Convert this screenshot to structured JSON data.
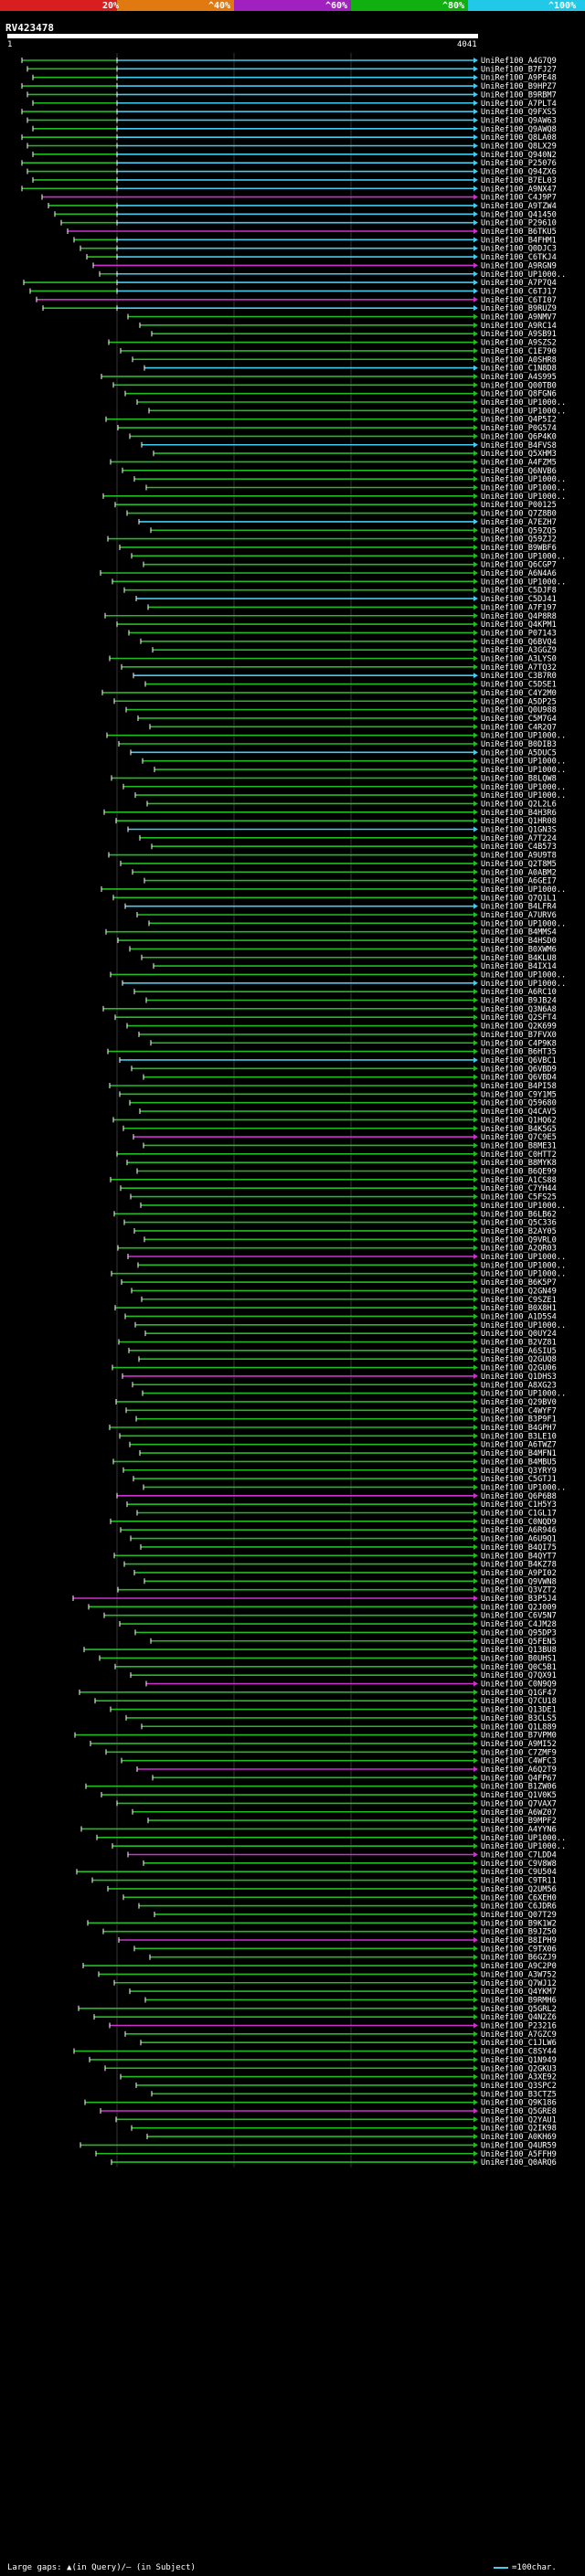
{
  "legend": {
    "stops": [
      {
        "label": "20%",
        "color": "#d81e1e"
      },
      {
        "label": "^40%",
        "color": "#e07a10"
      },
      {
        "label": "^60%",
        "color": "#a020c0"
      },
      {
        "label": "^80%",
        "color": "#10b010"
      },
      {
        "label": "^100%",
        "color": "#22c8e8"
      }
    ]
  },
  "query": {
    "name": "RV423478",
    "start": "1",
    "end": "4041"
  },
  "colors": {
    "cyan": "#44ccee",
    "green": "#22bb22",
    "magenta": "#cc33cc",
    "white": "#ffffff",
    "guide": "#333333"
  },
  "hits": [
    "UniRef100_A4G7Q9",
    "UniRef100_B7FJ27",
    "UniRef100_A9PE48",
    "UniRef100_B9HPZ7",
    "UniRef100_B9RBM7",
    "UniRef100_A7PLT4",
    "UniRef100_Q9FXS5",
    "UniRef100_Q9AW63",
    "UniRef100_Q9AWQ8",
    "UniRef100_Q8LA08",
    "UniRef100_Q8LX29",
    "UniRef100_Q940N2",
    "UniRef100_P25076",
    "UniRef100_Q94ZX6",
    "UniRef100_B7EL03",
    "UniRef100_A9NX47",
    "UniRef100_C4J9P7",
    "UniRef100_A9TZW4",
    "UniRef100_Q41450",
    "UniRef100_P29610",
    "UniRef100_B6TKU5",
    "UniRef100_B4FHM1",
    "UniRef100_Q0DJC3",
    "UniRef100_C6TKJ4",
    "UniRef100_A9RGN9",
    "UniRef100_UP1000..",
    "UniRef100_A7P7Q4",
    "UniRef100_C6TJ17",
    "UniRef100_C6TI07",
    "UniRef100_B9RUZ9",
    "UniRef100_A9NMV7",
    "UniRef100_A9RC14",
    "UniRef100_A9SB91",
    "UniRef100_A9SZS2",
    "UniRef100_C1E790",
    "UniRef100_A0SHR8",
    "UniRef100_C1N8D8",
    "UniRef100_A4S995",
    "UniRef100_Q00TB0",
    "UniRef100_Q8FGN6",
    "UniRef100_UP1000..",
    "UniRef100_UP1000..",
    "UniRef100_Q4P5I2",
    "UniRef100_P0G574",
    "UniRef100_Q6P4K0",
    "UniRef100_B4FVS8",
    "UniRef100_Q5XHM3",
    "UniRef100_A4FZM5",
    "UniRef100_Q6NVB6",
    "UniRef100_UP1000..",
    "UniRef100_UP1000..",
    "UniRef100_UP1000..",
    "UniRef100_P00125",
    "UniRef100_Q7Z8B0",
    "UniRef100_A7EZH7",
    "UniRef100_Q59ZQ5",
    "UniRef100_Q59ZJ2",
    "UniRef100_B9WBF6",
    "UniRef100_UP1000..",
    "UniRef100_Q6CGP7",
    "UniRef100_A6N4A6",
    "UniRef100_UP1000..",
    "UniRef100_C5DJF8",
    "UniRef100_C5DJ41",
    "UniRef100_A7F197",
    "UniRef100_Q4P8R8",
    "UniRef100_Q4KPM1",
    "UniRef100_P07143",
    "UniRef100_Q6BVQ4",
    "UniRef100_A3GGZ9",
    "UniRef100_A3LYS0",
    "UniRef100_A7TQ32",
    "UniRef100_C3B7R0",
    "UniRef100_C5DSE1",
    "UniRef100_C4Y2M0",
    "UniRef100_A5DP25",
    "UniRef100_Q0U988",
    "UniRef100_C5M7G4",
    "UniRef100_C4R2Q7",
    "UniRef100_UP1000..",
    "UniRef100_B0DIB3",
    "UniRef100_A5DUC5",
    "UniRef100_UP1000..",
    "UniRef100_UP1000..",
    "UniRef100_B8LQW8",
    "UniRef100_UP1000..",
    "UniRef100_UP1000..",
    "UniRef100_Q2L2L6",
    "UniRef100_B4H3R6",
    "UniRef100_Q1HR08",
    "UniRef100_Q1GN3S",
    "UniRef100_A7T224",
    "UniRef100_C4B573",
    "UniRef100_A9U9T8",
    "UniRef100_Q2T8M5",
    "UniRef100_A0ABM2",
    "UniRef100_A6GEI7",
    "UniRef100_UP1000..",
    "UniRef100_Q7Q1L1",
    "UniRef100_B4LFR4",
    "UniRef100_A7URV6",
    "UniRef100_UP1000..",
    "UniRef100_B4MMS4",
    "UniRef100_B4HSD0",
    "UniRef100_B0XWM6",
    "UniRef100_B4KLU8",
    "UniRef100_B4IX14",
    "UniRef100_UP1000..",
    "UniRef100_UP1000..",
    "UniRef100_A6RC10",
    "UniRef100_B9JB24",
    "UniRef100_Q3N6A8",
    "UniRef100_Q2SFT4",
    "UniRef100_Q2K699",
    "UniRef100_B7FVX0",
    "UniRef100_C4P9K8",
    "UniRef100_B6HT35",
    "UniRef100_Q6VBC1",
    "UniRef100_Q6VBD9",
    "UniRef100_Q6VBD4",
    "UniRef100_B4PI58",
    "UniRef100_C9Y1M5",
    "UniRef100_Q59680",
    "UniRef100_Q4CAV5",
    "UniRef100_Q1HQ62",
    "UniRef100_B4K5G5",
    "UniRef100_Q7C9E5",
    "UniRef100_B8ME31",
    "UniRef100_C0HTT2",
    "UniRef100_B8MYK8",
    "UniRef100_B6QE99",
    "UniRef100_A1CS88",
    "UniRef100_C7YH44",
    "UniRef100_C5FS25",
    "UniRef100_UP1000..",
    "UniRef100_B6LB62",
    "UniRef100_Q5C336",
    "UniRef100_B2AY05",
    "UniRef100_Q9VRL0",
    "UniRef100_A2QR03",
    "UniRef100_UP1000..",
    "UniRef100_UP1000..",
    "UniRef100_UP1000..",
    "UniRef100_B6K5P7",
    "UniRef100_Q2GN49",
    "UniRef100_C9SZE1",
    "UniRef100_B0X8H1",
    "UniRef100_A1D5S4",
    "UniRef100_UP1000..",
    "UniRef100_Q0UY24",
    "UniRef100_B2VZ81",
    "UniRef100_A6SIU5",
    "UniRef100_Q2GUQ8",
    "UniRef100_Q2GU06",
    "UniRef100_Q1DHS3",
    "UniRef100_A8XG23",
    "UniRef100_UP1000..",
    "UniRef100_Q29BV0",
    "UniRef100_C4WYF7",
    "UniRef100_B3P9F1",
    "UniRef100_B4GPH7",
    "UniRef100_B3LE10",
    "UniRef100_A6TWZ7",
    "UniRef100_B4MFN1",
    "UniRef100_B4MBU5",
    "UniRef100_Q3YRY9",
    "UniRef100_C5GTJ1",
    "UniRef100_UP1000..",
    "UniRef100_Q6P6B8",
    "UniRef100_C1H5Y3",
    "UniRef100_C1GL17",
    "UniRef100_C0NQD9",
    "UniRef100_A6R946",
    "UniRef100_A6U9Q1",
    "UniRef100_B4QI75",
    "UniRef100_B4QYT7",
    "UniRef100_B4KZ78",
    "UniRef100_A9PI02",
    "UniRef100_Q9VWN8",
    "UniRef100_Q3VZT2",
    "UniRef100_B3P5J4",
    "UniRef100_Q2J009",
    "UniRef100_C6V5N7",
    "UniRef100_C4JM28",
    "UniRef100_Q95DP3",
    "UniRef100_Q5FEN5",
    "UniRef100_Q13BU8",
    "UniRef100_B0UHS1",
    "UniRef100_Q0C5B1",
    "UniRef100_Q7QX91",
    "UniRef100_C0N9Q9",
    "UniRef100_Q1GF47",
    "UniRef100_Q7CU18",
    "UniRef100_Q13DE1",
    "UniRef100_B3CLS5",
    "UniRef100_Q1L889",
    "UniRef100_B7VPM0",
    "UniRef100_A9MI52",
    "UniRef100_C7ZMF9",
    "UniRef100_C4WFC3",
    "UniRef100_A6Q2T9",
    "UniRef100_Q4FP67",
    "UniRef100_B1ZW06",
    "UniRef100_Q1V0K5",
    "UniRef100_Q7VAX7",
    "UniRef100_A6WZ07",
    "UniRef100_B9MPF2",
    "UniRef100_A4YYN6",
    "UniRef100_UP1000..",
    "UniRef100_UP1000..",
    "UniRef100_C7LDD4",
    "UniRef100_C9V8W8",
    "UniRef100_C9U504",
    "UniRef100_C9TR11",
    "UniRef100_Q2UM56",
    "UniRef100_C6XEH0",
    "UniRef100_C6JDR6",
    "UniRef100_Q07T29",
    "UniRef100_B9K1W2",
    "UniRef100_B9JZ50",
    "UniRef100_B8IPH9",
    "UniRef100_C9TX06",
    "UniRef100_B6GZJ9",
    "UniRef100_A9C2P0",
    "UniRef100_A3W752",
    "UniRef100_Q7WJ12",
    "UniRef100_Q4YKM7",
    "UniRef100_B9RMH6",
    "UniRef100_Q5GRL2",
    "UniRef100_Q4N2Z6",
    "UniRef100_P23216",
    "UniRef100_A7GZC9",
    "UniRef100_C1JLW6",
    "UniRef100_C8SY44",
    "UniRef100_Q1N949",
    "UniRef100_Q2GKU3",
    "UniRef100_A3XE92",
    "UniRef100_Q3SPC2",
    "UniRef100_B3CTZ5",
    "UniRef100_Q9K186",
    "UniRef100_Q5GRE8",
    "UniRef100_Q2YAU1",
    "UniRef100_Q2IK98",
    "UniRef100_A0KH69",
    "UniRef100_Q4UR59",
    "UniRef100_A5FFH9",
    "UniRef100_Q0ARQ6"
  ],
  "footer": {
    "gaps_text": "Large gaps: ▲(in Query)/— (in Subject)",
    "scale_text": "=100char."
  }
}
